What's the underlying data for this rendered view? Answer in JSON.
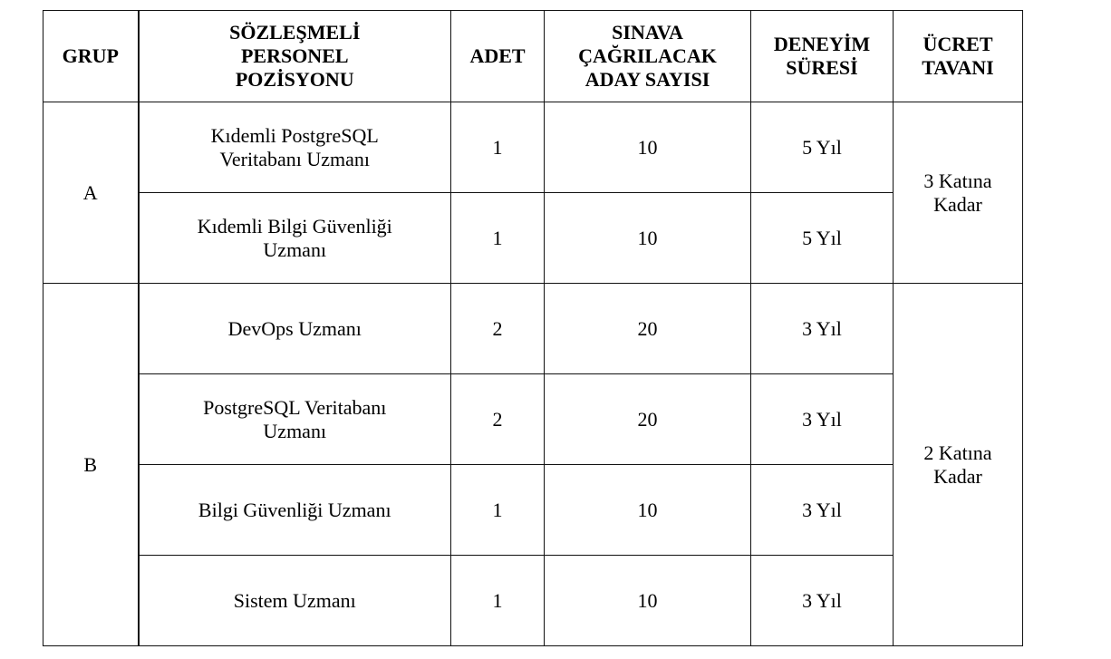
{
  "headers": [
    "GRUP",
    "SÖZLEŞMELİ\nPERSONEL\nPOZİSYONU",
    "ADET",
    "SINAVA\nÇAĞRILACAK\nADAY SAYISI",
    "DENEYİM\nSÜRESİ",
    "ÜCRET\nTAVANI"
  ],
  "groups": [
    {
      "group": "A",
      "salary_cap": "3 Katına\nKadar",
      "rows": [
        {
          "position": "Kıdemli PostgreSQL\nVeritabanı Uzmanı",
          "count": "1",
          "candidates": "10",
          "experience": "5 Yıl"
        },
        {
          "position": "Kıdemli Bilgi Güvenliği\nUzmanı",
          "count": "1",
          "candidates": "10",
          "experience": "5 Yıl"
        }
      ]
    },
    {
      "group": "B",
      "salary_cap": "2 Katına\nKadar",
      "rows": [
        {
          "position": "DevOps Uzmanı",
          "count": "2",
          "candidates": "20",
          "experience": "3 Yıl"
        },
        {
          "position": "PostgreSQL Veritabanı\nUzmanı",
          "count": "2",
          "candidates": "20",
          "experience": "3 Yıl"
        },
        {
          "position": "Bilgi Güvenliği Uzmanı",
          "count": "1",
          "candidates": "10",
          "experience": "3 Yıl"
        },
        {
          "position": "Sistem Uzmanı",
          "count": "1",
          "candidates": "10",
          "experience": "3 Yıl"
        }
      ]
    }
  ]
}
